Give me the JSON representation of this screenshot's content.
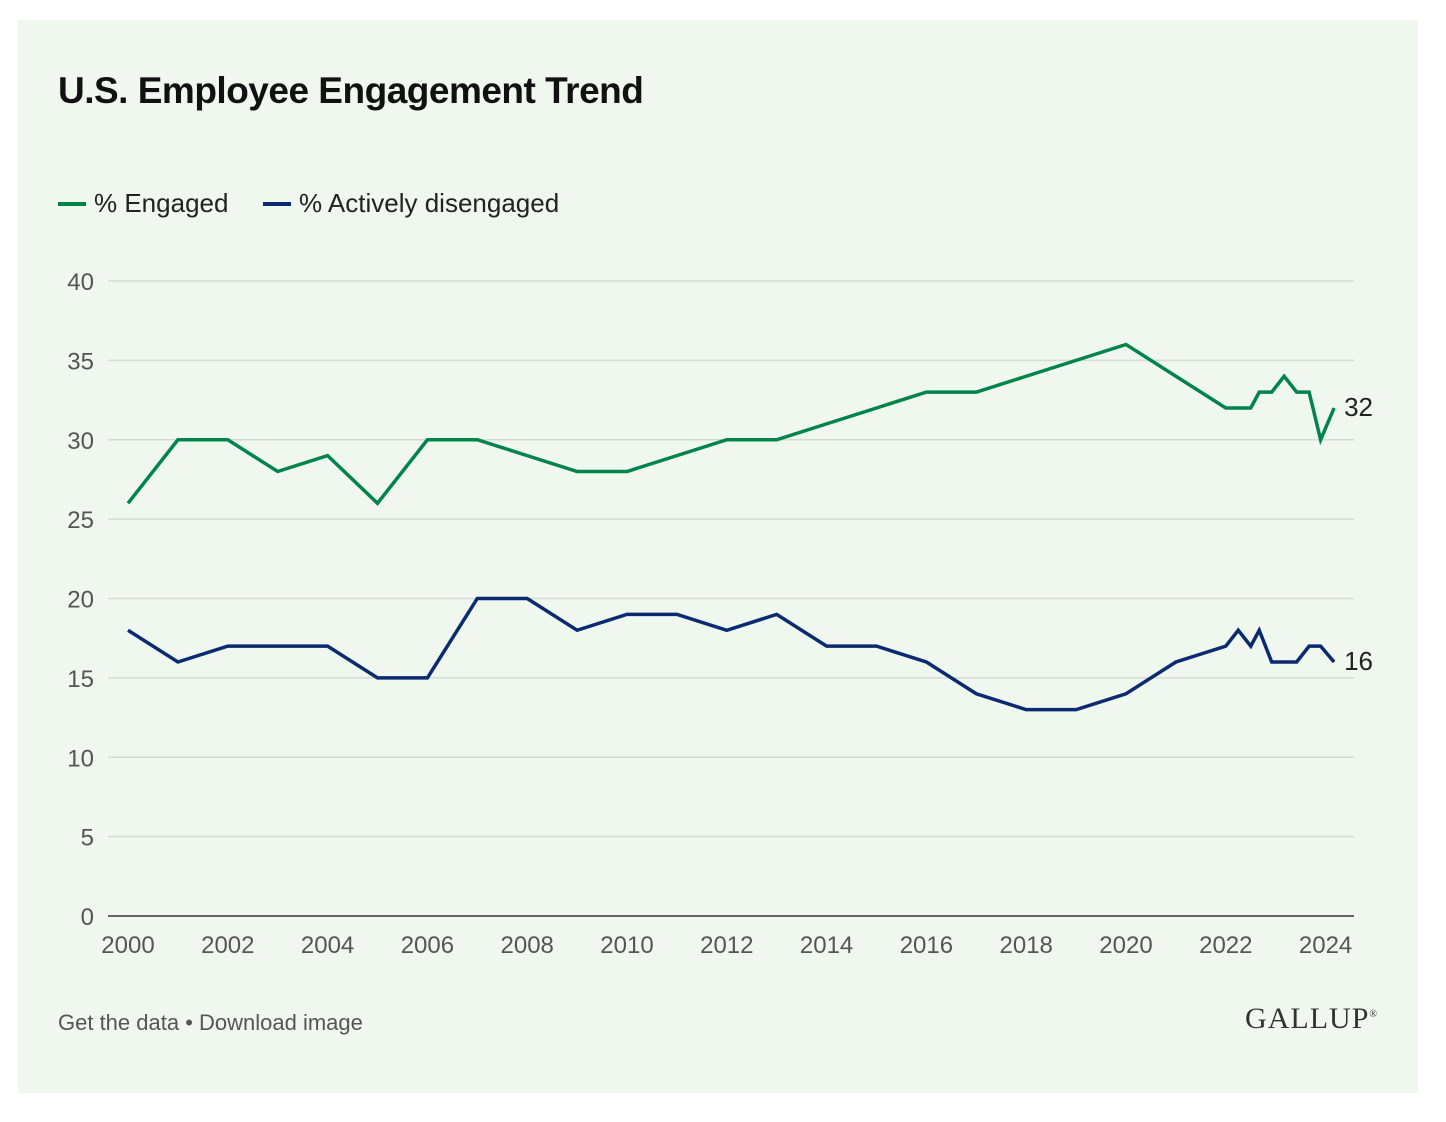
{
  "chart_data": {
    "type": "line",
    "title": "U.S. Employee Engagement Trend",
    "xlabel": "",
    "ylabel": "",
    "xlim": [
      2000,
      2024.5
    ],
    "ylim": [
      0,
      40
    ],
    "x_ticks": [
      "2000",
      "2002",
      "2004",
      "2006",
      "2008",
      "2010",
      "2012",
      "2014",
      "2016",
      "2018",
      "2020",
      "2022",
      "2024"
    ],
    "y_ticks": [
      "0",
      "5",
      "10",
      "15",
      "20",
      "25",
      "30",
      "35",
      "40"
    ],
    "grid": "horizontal",
    "legend": "top-left",
    "series": [
      {
        "name": "% Engaged",
        "color": "#00844a",
        "end_label": "32",
        "x": [
          2000,
          2001,
          2002,
          2003,
          2004,
          2005,
          2006,
          2007,
          2008,
          2009,
          2010,
          2011,
          2012,
          2013,
          2014,
          2015,
          2016,
          2017,
          2018,
          2019,
          2020,
          2021,
          2022,
          2022.5,
          2022.67,
          2022.92,
          2023.17,
          2023.42,
          2023.67,
          2023.9,
          2024.17
        ],
        "y": [
          26,
          30,
          30,
          28,
          29,
          26,
          30,
          30,
          29,
          28,
          28,
          29,
          30,
          30,
          31,
          32,
          33,
          33,
          34,
          35,
          36,
          34,
          32,
          32,
          33,
          33,
          34,
          33,
          33,
          30,
          32
        ]
      },
      {
        "name": "% Actively disengaged",
        "color": "#0b2a70",
        "end_label": "16",
        "x": [
          2000,
          2001,
          2002,
          2003,
          2004,
          2005,
          2006,
          2007,
          2008,
          2009,
          2010,
          2011,
          2012,
          2013,
          2014,
          2015,
          2016,
          2017,
          2018,
          2019,
          2020,
          2021,
          2022,
          2022.25,
          2022.5,
          2022.67,
          2022.92,
          2023.42,
          2023.67,
          2023.9,
          2024.17
        ],
        "y": [
          18,
          16,
          17,
          17,
          17,
          15,
          15,
          20,
          20,
          18,
          19,
          19,
          18,
          19,
          17,
          17,
          16,
          14,
          13,
          13,
          14,
          16,
          17,
          18,
          17,
          18,
          16,
          16,
          17,
          17,
          16
        ]
      }
    ]
  },
  "footer": {
    "links": "Get the data • Download image"
  },
  "logo": "GALLUP"
}
